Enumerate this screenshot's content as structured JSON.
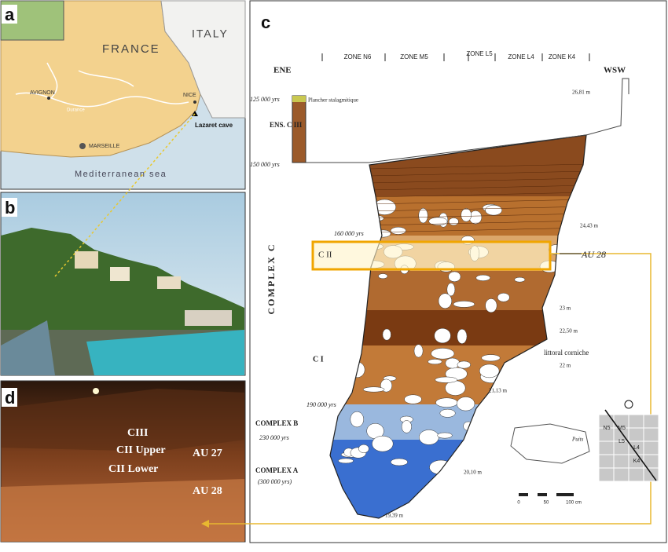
{
  "panel_labels": [
    "a",
    "b",
    "c",
    "d"
  ],
  "map": {
    "countries": [
      "FRANCE",
      "ITALY"
    ],
    "cities": [
      "AVIGNON",
      "NICE",
      "MARSEILLE"
    ],
    "river": "Durance",
    "site": "Lazaret cave",
    "sea": "Mediterranean sea"
  },
  "photo_d": {
    "labels": [
      "CIII",
      "CII Upper",
      "CII Lower",
      "AU 27",
      "AU 28"
    ]
  },
  "section": {
    "zones": [
      "ZONE N6",
      "ZONE M5",
      "ZONE L5",
      "ZONE L4",
      "ZONE K4"
    ],
    "orientation": [
      "ENE",
      "WSW"
    ],
    "ages": [
      "125 000 yrs",
      "150 000 yrs",
      "160 000 yrs",
      "190 000 yrs",
      "230 000 yrs",
      "(300 000 yrs)"
    ],
    "units": [
      "ENS. C III",
      "COMPLEX C",
      "C I",
      "COMPLEX B",
      "COMPLEX A"
    ],
    "elevations": [
      "26,81 m",
      "24,43 m",
      "23 m",
      "22,50 m",
      "22 m",
      "21,13 m",
      "20,10 m",
      "19,39 m"
    ],
    "notes": [
      "Plancher stalagmitique",
      "littoral corniche",
      "Puits"
    ],
    "highlight": {
      "unit": "C II",
      "label": "AU 28"
    },
    "scale": [
      "0",
      "50",
      "100 cm"
    ],
    "grid_cells": [
      "N5",
      "M5",
      "L5",
      "L4",
      "K4"
    ]
  }
}
